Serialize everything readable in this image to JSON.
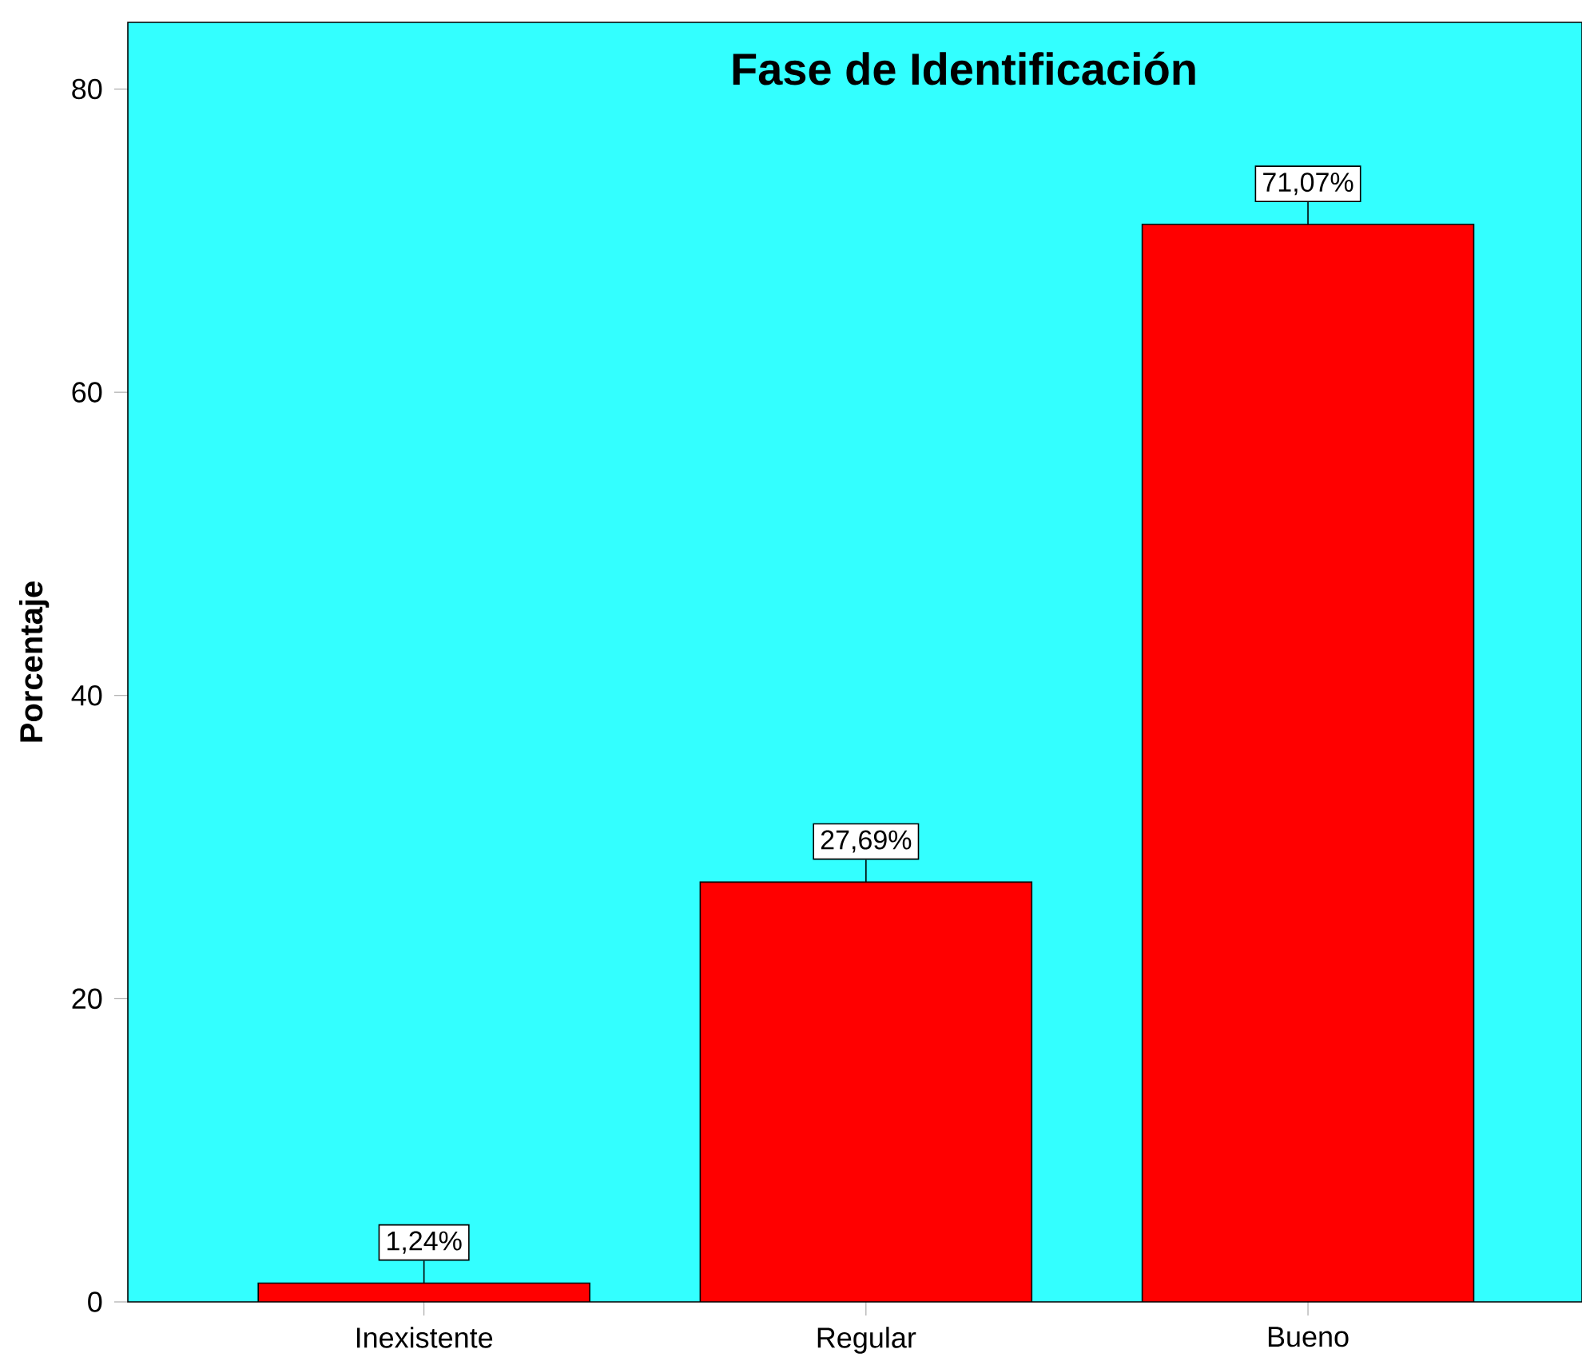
{
  "chart_data": {
    "type": "bar",
    "title": "Fase de Identificación",
    "ylabel": "Porcentaje",
    "categories": [
      "Inexistente",
      "Regular",
      "Bueno"
    ],
    "values": [
      1.24,
      27.69,
      71.07
    ],
    "value_labels": [
      "1,24%",
      "27,69%",
      "71,07%"
    ],
    "color": "#ff0000",
    "ylim": [
      0,
      84.4
    ],
    "yticks": [
      0,
      20,
      40,
      60,
      80
    ],
    "grid": false
  }
}
